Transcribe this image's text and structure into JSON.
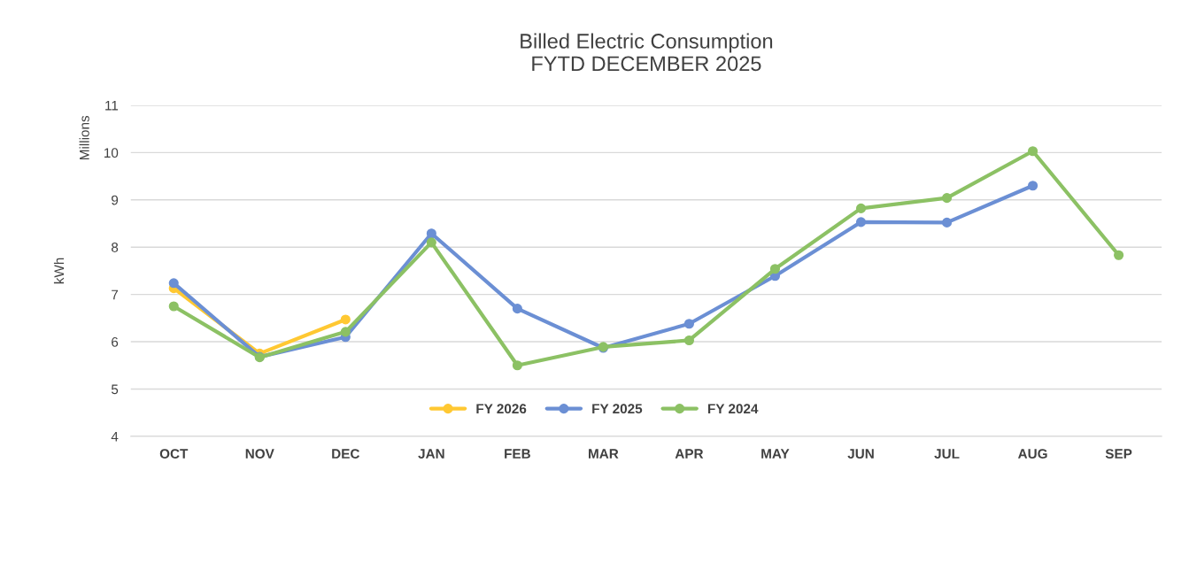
{
  "chart_data": {
    "type": "line",
    "title": "Billed Electric Consumption\nFYTD DECEMBER 2025",
    "ylabel": "kWh",
    "annotations": [
      "Millions"
    ],
    "categories": [
      "OCT",
      "NOV",
      "DEC",
      "JAN",
      "FEB",
      "MAR",
      "APR",
      "MAY",
      "JUN",
      "JUL",
      "AUG",
      "SEP"
    ],
    "series": [
      {
        "name": "FY 2026",
        "color": "#ffc832",
        "values": [
          7.13,
          5.75,
          6.47,
          null,
          null,
          null,
          null,
          null,
          null,
          null,
          null,
          null
        ]
      },
      {
        "name": "FY 2025",
        "color": "#6b8fd4",
        "values": [
          7.24,
          5.68,
          6.1,
          8.29,
          6.7,
          5.87,
          6.38,
          7.39,
          8.53,
          8.52,
          9.3,
          null
        ]
      },
      {
        "name": "FY 2024",
        "color": "#8cc164",
        "values": [
          6.75,
          5.67,
          6.21,
          8.1,
          5.5,
          5.89,
          6.03,
          7.54,
          8.82,
          9.04,
          10.03,
          7.83
        ]
      }
    ],
    "ylim": [
      4,
      11
    ],
    "yticks": [
      4,
      5,
      6,
      7,
      8,
      9,
      10,
      11
    ],
    "grid": "y",
    "legend": "bottom",
    "marker": "circle",
    "line_style": "solid"
  }
}
